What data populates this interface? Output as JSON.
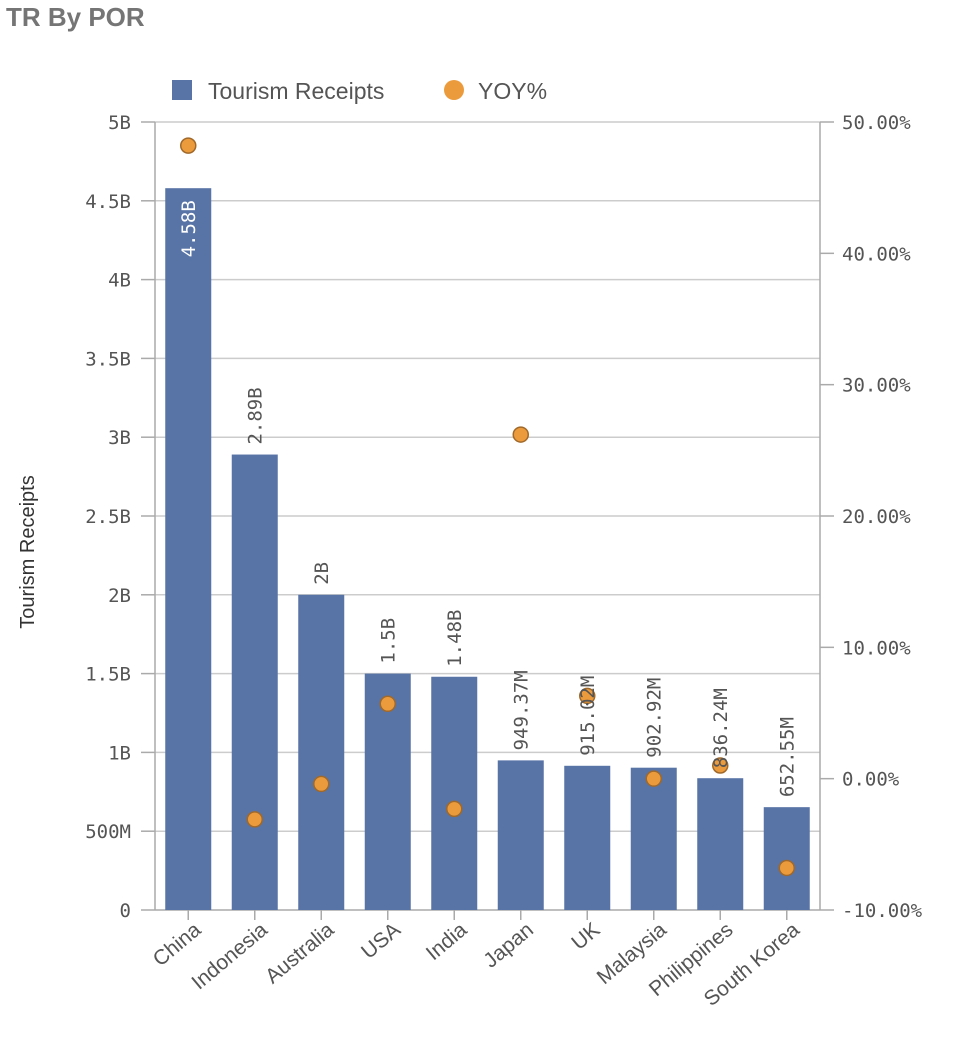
{
  "header": {
    "title": "TR By POR"
  },
  "chart_data": {
    "type": "bar",
    "categories": [
      "China",
      "Indonesia",
      "Australia",
      "USA",
      "India",
      "Japan",
      "UK",
      "Malaysia",
      "Philippines",
      "South Korea"
    ],
    "series": [
      {
        "name": "Tourism Receipts",
        "axis": "left",
        "values": [
          4580000000,
          2890000000,
          2000000000,
          1500000000,
          1480000000,
          949370000,
          915020000,
          902920000,
          836240000,
          652550000
        ],
        "labels": [
          "4.58B",
          "2.89B",
          "2B",
          "1.5B",
          "1.48B",
          "949.37M",
          "915.02M",
          "902.92M",
          "836.24M",
          "652.55M"
        ],
        "color": "#5874a6"
      },
      {
        "name": "YOY%",
        "axis": "right",
        "render": "marker",
        "values": [
          48.2,
          -3.1,
          -0.4,
          5.7,
          -2.3,
          26.2,
          6.3,
          0.0,
          1.0,
          -6.8
        ],
        "color": "#ec9b3c"
      }
    ],
    "ylabel": "Tourism Receipts",
    "y_ticks": [
      "0",
      "500M",
      "1B",
      "1.5B",
      "2B",
      "2.5B",
      "3B",
      "3.5B",
      "4B",
      "4.5B",
      "5B"
    ],
    "ylim": [
      0,
      5000000000
    ],
    "y2_ticks": [
      "-10.00%",
      "0.00%",
      "10.00%",
      "20.00%",
      "30.00%",
      "40.00%",
      "50.00%"
    ],
    "y2lim": [
      -10,
      50
    ],
    "grid": true,
    "legend": "top-left"
  },
  "colors": {
    "bar": "#5874a6",
    "marker": "#ec9b3c",
    "grid": "#cccccc"
  }
}
